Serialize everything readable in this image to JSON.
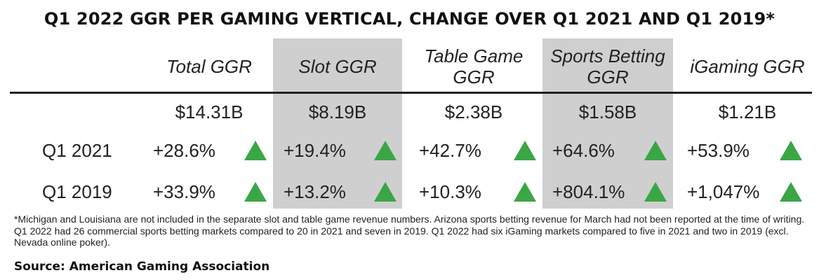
{
  "chart_data": {
    "type": "table",
    "title": "Q1 2022 GGR PER GAMING VERTICAL, CHANGE OVER Q1 2021 AND Q1 2019*",
    "columns": [
      "Total GGR",
      "Slot GGR",
      "Table Game GGR",
      "Sports Betting GGR",
      "iGaming GGR"
    ],
    "totals": [
      "$14.31B",
      "$8.19B",
      "$2.38B",
      "$1.58B",
      "$1.21B"
    ],
    "rows": [
      {
        "label": "Q1 2021",
        "values": [
          "+28.6%",
          "+19.4%",
          "+42.7%",
          "+64.6%",
          "+53.9%"
        ]
      },
      {
        "label": "Q1 2019",
        "values": [
          "+33.9%",
          "+13.2%",
          "+10.3%",
          "+804.1%",
          "+1,047%"
        ]
      }
    ],
    "indicator_color": "#3aa646",
    "shaded_column_color": "#cfcfd0"
  },
  "footnote": "*Michigan and Louisiana are not included in the separate slot and table game revenue numbers. Arizona sports betting revenue for March had not been reported at the time of writing. Q1 2022 had 26 commercial sports betting markets compared to 20 in 2021 and seven in 2019. Q1 2022 had six iGaming markets compared to five in 2021 and two in 2019 (excl. Nevada online poker).",
  "source": "Source: American Gaming Association"
}
